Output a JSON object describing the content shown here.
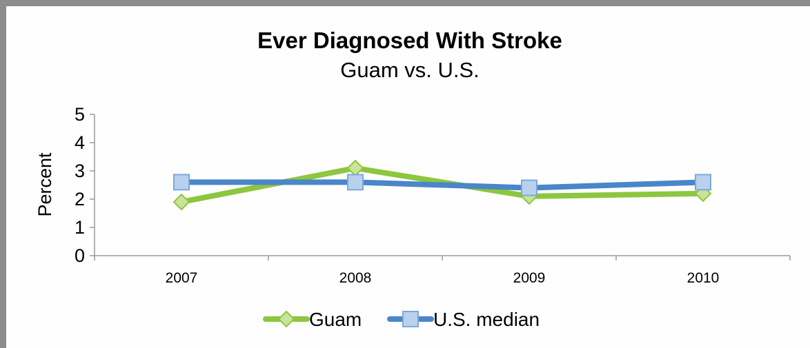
{
  "chart_data": {
    "type": "line",
    "title": "Ever Diagnosed With Stroke",
    "subtitle": "Guam vs. U.S.",
    "ylabel": "Percent",
    "xlabel": "",
    "categories": [
      "2007",
      "2008",
      "2009",
      "2010"
    ],
    "ylim": [
      0,
      5
    ],
    "yticks": [
      "0",
      "1",
      "2",
      "3",
      "4",
      "5"
    ],
    "grid": false,
    "legend_position": "bottom",
    "series": [
      {
        "name": "Guam",
        "values": [
          1.9,
          3.1,
          2.1,
          2.2
        ],
        "color": "#8dc63f",
        "marker": "diamond"
      },
      {
        "name": "U.S. median",
        "values": [
          2.6,
          2.6,
          2.4,
          2.6
        ],
        "color": "#4a86c8",
        "marker": "square"
      }
    ]
  }
}
